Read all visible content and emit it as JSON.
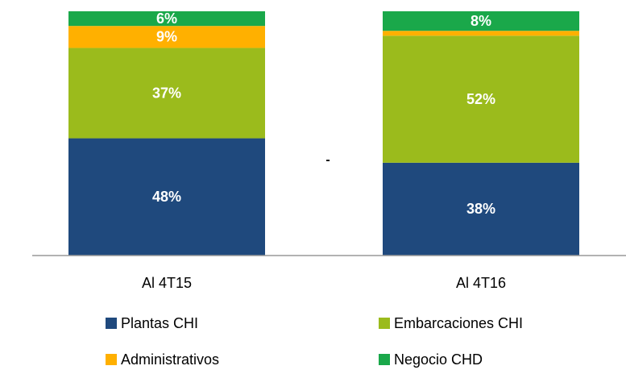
{
  "chart_data": {
    "type": "stacked-bar",
    "categories": [
      "Al 4T15",
      "Al 4T16"
    ],
    "series": [
      {
        "name": "Plantas CHI",
        "color": "#1f497d",
        "values": [
          48,
          38
        ],
        "value_labels": [
          "48%",
          "38%"
        ]
      },
      {
        "name": "Embarcaciones CHI",
        "color": "#9bbb1c",
        "values": [
          37,
          52
        ],
        "value_labels": [
          "37%",
          "52%"
        ]
      },
      {
        "name": "Administrativos",
        "color": "#ffb000",
        "values": [
          9,
          2
        ],
        "value_labels": [
          "9%",
          null
        ]
      },
      {
        "name": "Negocio CHD",
        "color": "#1aa84a",
        "values": [
          6,
          8
        ],
        "value_labels": [
          "6%",
          "8%"
        ]
      }
    ],
    "annotation": "-",
    "ylim": [
      0,
      100
    ]
  }
}
